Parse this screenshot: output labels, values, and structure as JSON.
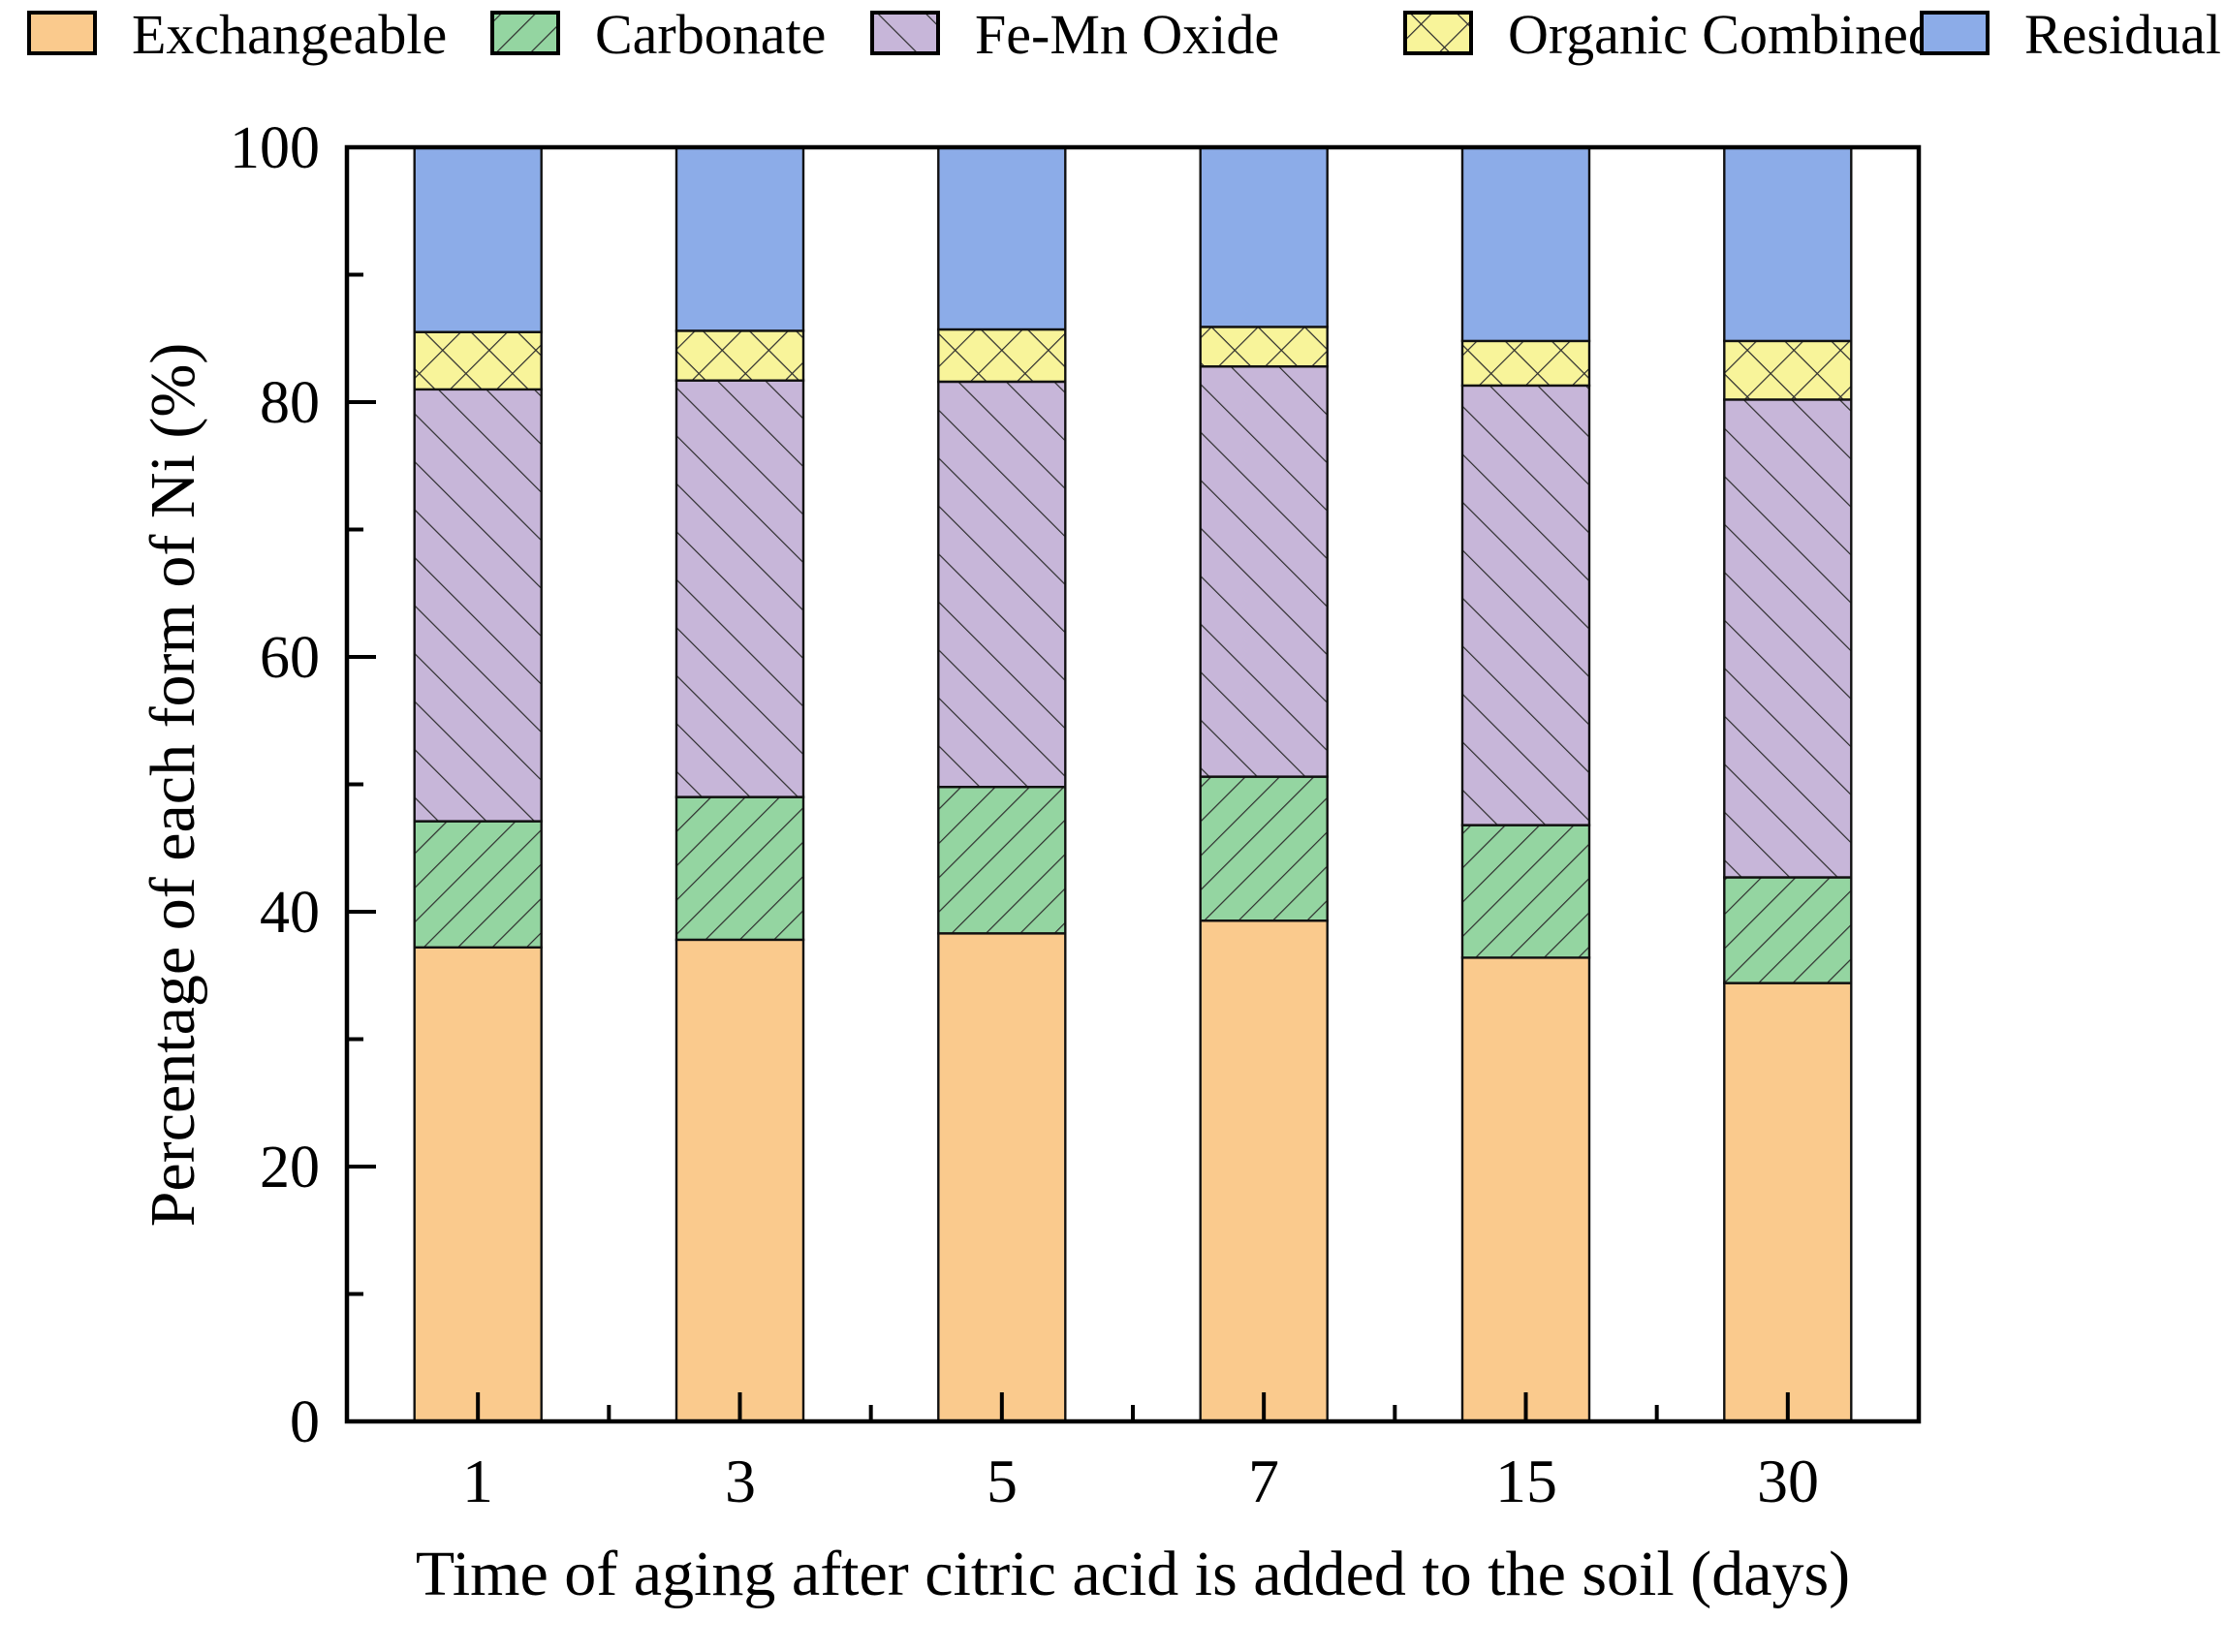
{
  "chart_data": {
    "type": "bar",
    "stacked": true,
    "title": "",
    "xlabel": "Time of aging after citric acid is added to the soil (days)",
    "ylabel": "Percentage of each form of Ni (%)",
    "categories": [
      "1",
      "3",
      "5",
      "7",
      "15",
      "30"
    ],
    "ylim": [
      0,
      100
    ],
    "yticks_major": [
      0,
      20,
      40,
      60,
      80,
      100
    ],
    "yticks_minor": [
      10,
      30,
      50,
      70,
      90
    ],
    "grid": false,
    "legend_position": "top",
    "frame": "box",
    "series": [
      {
        "name": "Exchangeable",
        "color": "#FACA8D",
        "hatch": "none",
        "values": [
          37.2,
          37.8,
          38.3,
          39.3,
          36.4,
          34.4
        ]
      },
      {
        "name": "Carbonate",
        "color": "#94D5A1",
        "hatch": "forward-diagonal",
        "values": [
          9.9,
          11.2,
          11.5,
          11.3,
          10.4,
          8.3
        ]
      },
      {
        "name": "Fe-Mn Oxide",
        "color": "#C7B6D9",
        "hatch": "back-diagonal",
        "values": [
          33.9,
          32.7,
          31.8,
          32.2,
          34.5,
          37.5
        ]
      },
      {
        "name": "Organic Combined",
        "color": "#F8F49A",
        "hatch": "cross-diagonal",
        "values": [
          4.5,
          3.9,
          4.1,
          3.1,
          3.5,
          4.6
        ]
      },
      {
        "name": "Residual",
        "color": "#8CACE8",
        "hatch": "none",
        "values": [
          14.5,
          14.4,
          14.3,
          14.1,
          15.2,
          15.2
        ]
      }
    ],
    "colors": {
      "bar_edge": "#111111",
      "hatch_line": "#2e2e2e",
      "axis": "#000000"
    }
  }
}
